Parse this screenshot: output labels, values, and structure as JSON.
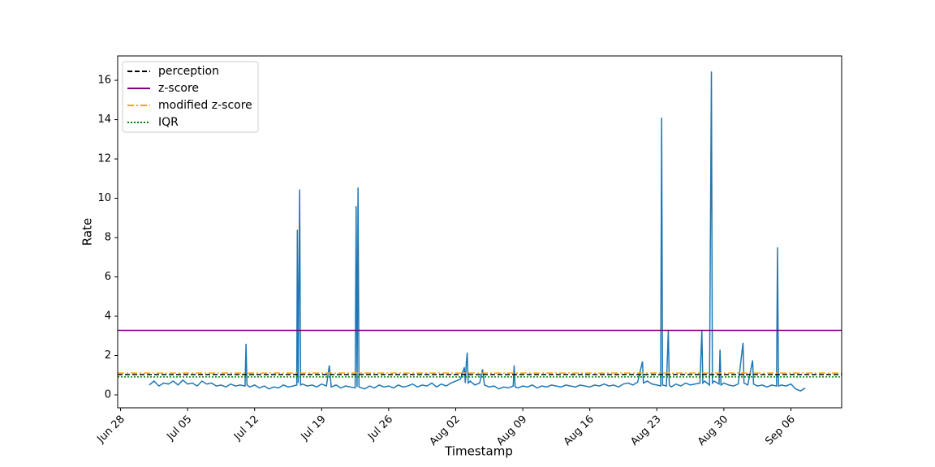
{
  "chart_data": {
    "type": "line",
    "xlabel": "Timestamp",
    "ylabel": "Rate",
    "xlim": [
      -0.3,
      75.3
    ],
    "xticks": [
      {
        "value": 0,
        "label": "Jun 28"
      },
      {
        "value": 7,
        "label": "Jul 05"
      },
      {
        "value": 14,
        "label": "Jul 12"
      },
      {
        "value": 21,
        "label": "Jul 19"
      },
      {
        "value": 28,
        "label": "Jul 26"
      },
      {
        "value": 35,
        "label": "Aug 02"
      },
      {
        "value": 42,
        "label": "Aug 09"
      },
      {
        "value": 49,
        "label": "Aug 16"
      },
      {
        "value": 56,
        "label": "Aug 23"
      },
      {
        "value": 63,
        "label": "Aug 30"
      },
      {
        "value": 70,
        "label": "Sep 06"
      }
    ],
    "ylim": [
      -0.66,
      17.24
    ],
    "yticks": [
      0,
      2,
      4,
      6,
      8,
      10,
      12,
      14,
      16
    ],
    "legend": "upper left",
    "series": [
      {
        "color": "#1f77b4",
        "x": [
          3.0,
          3.5,
          4.0,
          4.5,
          5.0,
          5.5,
          6.0,
          6.5,
          7.0,
          7.5,
          8.0,
          8.5,
          9.0,
          9.5,
          10.0,
          10.5,
          11.0,
          11.5,
          12.0,
          12.5,
          13.0,
          13.1,
          13.2,
          13.5,
          14.0,
          14.5,
          15.0,
          15.5,
          16.0,
          16.5,
          17.0,
          17.5,
          18.0,
          18.4,
          18.46,
          18.55,
          18.7,
          18.8,
          19.0,
          19.5,
          20.0,
          20.5,
          21.0,
          21.5,
          21.8,
          22.0,
          22.5,
          23.0,
          23.5,
          24.0,
          24.5,
          24.6,
          24.7,
          24.8,
          24.9,
          25.5,
          26.0,
          26.5,
          27.0,
          27.5,
          28.0,
          28.5,
          29.0,
          29.5,
          30.0,
          30.5,
          31.0,
          31.5,
          32.0,
          32.5,
          33.0,
          33.5,
          34.0,
          34.5,
          35.0,
          35.5,
          35.9,
          36.0,
          36.1,
          36.2,
          36.3,
          36.5,
          37.0,
          37.5,
          37.8,
          38.0,
          38.5,
          39.0,
          39.5,
          40.0,
          40.5,
          41.0,
          41.1,
          41.2,
          41.5,
          42.0,
          42.5,
          43.0,
          43.5,
          44.0,
          44.5,
          45.0,
          45.5,
          46.0,
          46.5,
          47.0,
          47.5,
          48.0,
          48.5,
          49.0,
          49.5,
          50.0,
          50.5,
          51.0,
          51.5,
          52.0,
          52.5,
          53.0,
          53.5,
          54.0,
          54.5,
          54.6,
          55.0,
          55.5,
          56.0,
          56.4,
          56.5,
          56.6,
          57.0,
          57.2,
          57.3,
          57.5,
          58.0,
          58.5,
          59.0,
          59.5,
          60.0,
          60.5,
          60.7,
          60.8,
          61.0,
          61.5,
          61.7,
          61.8,
          62.0,
          62.5,
          62.6,
          62.7,
          63.0,
          63.5,
          64.0,
          64.5,
          65.0,
          65.1,
          65.5,
          66.0,
          66.1,
          66.5,
          67.0,
          67.5,
          68.0,
          68.5,
          68.6,
          68.7,
          69.0,
          69.5,
          70.0,
          70.5,
          71.0,
          71.5
        ],
        "values": [
          0.5,
          0.7,
          0.45,
          0.6,
          0.55,
          0.7,
          0.5,
          0.75,
          0.55,
          0.6,
          0.45,
          0.7,
          0.55,
          0.6,
          0.45,
          0.5,
          0.4,
          0.55,
          0.45,
          0.5,
          0.45,
          2.6,
          0.5,
          0.4,
          0.5,
          0.35,
          0.45,
          0.3,
          0.4,
          0.35,
          0.5,
          0.4,
          0.45,
          0.5,
          8.4,
          0.6,
          10.45,
          0.5,
          0.55,
          0.45,
          0.5,
          0.4,
          0.55,
          0.45,
          1.5,
          0.4,
          0.5,
          0.35,
          0.45,
          0.4,
          0.35,
          9.6,
          0.4,
          10.55,
          0.4,
          0.3,
          0.45,
          0.35,
          0.5,
          0.4,
          0.45,
          0.35,
          0.5,
          0.4,
          0.45,
          0.55,
          0.4,
          0.5,
          0.45,
          0.6,
          0.4,
          0.55,
          0.45,
          0.6,
          0.7,
          0.8,
          1.4,
          0.6,
          1.6,
          2.15,
          0.6,
          0.7,
          0.5,
          0.6,
          1.3,
          0.5,
          0.4,
          0.45,
          0.3,
          0.4,
          0.35,
          0.45,
          1.5,
          0.4,
          0.35,
          0.45,
          0.4,
          0.5,
          0.35,
          0.45,
          0.4,
          0.5,
          0.45,
          0.4,
          0.5,
          0.45,
          0.4,
          0.5,
          0.45,
          0.4,
          0.5,
          0.45,
          0.55,
          0.45,
          0.5,
          0.4,
          0.55,
          0.6,
          0.5,
          0.65,
          1.7,
          0.6,
          0.7,
          0.55,
          0.5,
          0.45,
          14.1,
          0.5,
          0.45,
          3.3,
          0.5,
          0.4,
          0.55,
          0.45,
          0.6,
          0.5,
          0.55,
          0.6,
          3.3,
          0.6,
          0.7,
          0.5,
          16.45,
          0.6,
          0.7,
          0.55,
          2.3,
          0.5,
          0.6,
          0.5,
          0.45,
          0.55,
          2.65,
          0.6,
          0.5,
          1.75,
          0.55,
          0.45,
          0.5,
          0.4,
          0.5,
          0.45,
          7.5,
          0.45,
          0.5,
          0.45,
          0.55,
          0.3,
          0.2,
          0.35
        ]
      }
    ],
    "hlines": [
      {
        "name": "perception",
        "color": "#000000",
        "value": 1.03,
        "dash": "6 3"
      },
      {
        "name": "z-score",
        "color": "#800080",
        "value": 3.28,
        "dash": "none"
      },
      {
        "name": "modified z-score",
        "color": "#ffa500",
        "value": 1.11,
        "dash": "8 3 2 3"
      },
      {
        "name": "IQR",
        "color": "#008000",
        "value": 0.91,
        "dash": "2 2"
      }
    ]
  }
}
